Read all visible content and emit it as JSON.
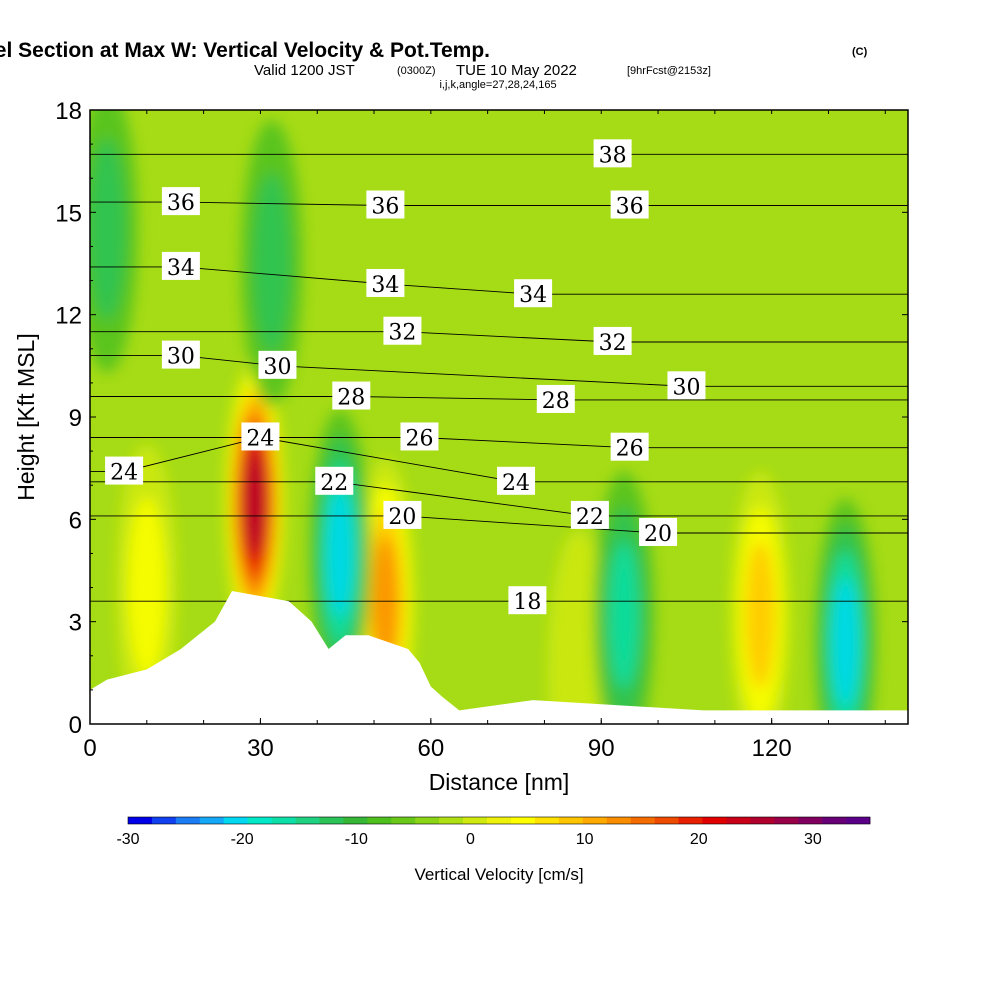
{
  "title": {
    "main": "Wind-Parallel Section at Max W: Vertical Velocity & Pot.Temp.",
    "main_units": "(C)",
    "valid_prefix": "Valid 1200 JST",
    "valid_utc": "(0300Z)",
    "valid_date": "TUE 10 May 2022",
    "forecast": "[9hrFcst@2153z]",
    "indices": "i,j,k,angle=27,28,24,165"
  },
  "chart_data": {
    "type": "heatmap",
    "title": "Wind-Parallel Section at Max W: Vertical Velocity & Pot.Temp. (C)",
    "xlabel": "Distance [nm]",
    "ylabel": "Height [Kft MSL]",
    "xlim": [
      0,
      144
    ],
    "ylim": [
      0,
      18
    ],
    "x_ticks": [
      "0",
      "30",
      "60",
      "90",
      "120"
    ],
    "y_ticks": [
      "0",
      "3",
      "6",
      "9",
      "12",
      "15",
      "18"
    ],
    "fill_field": "Vertical Velocity [cm/s]",
    "colorbar": {
      "label": "Vertical Velocity [cm/s]",
      "ticks": [
        "-30",
        "-20",
        "-10",
        "0",
        "10",
        "20",
        "30"
      ],
      "min": -30,
      "max": 35,
      "step": 2.5,
      "colors": [
        "#0000e8",
        "#1040f0",
        "#1c7cf4",
        "#14a8f6",
        "#00d8f2",
        "#00e8c8",
        "#0ce0a8",
        "#1ed282",
        "#2cc458",
        "#36b836",
        "#4ec01e",
        "#6ac818",
        "#8cd416",
        "#aee014",
        "#d0ea10",
        "#eef20a",
        "#ffff00",
        "#ffe200",
        "#ffc600",
        "#ffaa00",
        "#fa8c00",
        "#f46c00",
        "#ee4a00",
        "#e82000",
        "#e00000",
        "#c80018",
        "#b0002e",
        "#980048",
        "#800060",
        "#680078",
        "#5a0088"
      ]
    },
    "updraft_cores": [
      {
        "x": 29,
        "z": 6.5,
        "w": 35
      },
      {
        "x": 52,
        "z": 3.6,
        "w": 20
      },
      {
        "x": 118,
        "z": 3.2,
        "w": 15
      },
      {
        "x": 10,
        "z": 4.0,
        "w": 10
      },
      {
        "x": 86,
        "z": 1.5,
        "w": 5
      }
    ],
    "downdraft_cores": [
      {
        "x": 44,
        "z": 5.0,
        "w": -20
      },
      {
        "x": 133,
        "z": 2.4,
        "w": -20
      },
      {
        "x": 94,
        "z": 3.2,
        "w": -15
      },
      {
        "x": 3,
        "z": 14.5,
        "w": -10
      },
      {
        "x": 32,
        "z": 13.5,
        "w": -8
      }
    ],
    "terrain_profile": {
      "x": [
        0,
        3,
        10,
        13,
        16,
        19,
        22,
        25,
        35,
        37,
        39,
        42,
        45,
        46,
        49,
        56,
        58,
        60,
        62,
        65,
        78,
        108,
        128,
        144
      ],
      "z": [
        1.0,
        1.3,
        1.6,
        1.9,
        2.2,
        2.6,
        3.0,
        3.9,
        3.6,
        3.3,
        3.0,
        2.2,
        2.6,
        2.6,
        2.6,
        2.2,
        1.8,
        1.1,
        0.8,
        0.4,
        0.7,
        0.4,
        0.4,
        0.4
      ],
      "note": "blank (white) region below terrain"
    },
    "theta_contour_labels": [
      {
        "text": "38",
        "x": 92,
        "z": 16.7
      },
      {
        "text": "36",
        "x": 16,
        "z": 15.3
      },
      {
        "text": "36",
        "x": 52,
        "z": 15.2
      },
      {
        "text": "36",
        "x": 95,
        "z": 15.2
      },
      {
        "text": "34",
        "x": 16,
        "z": 13.4
      },
      {
        "text": "34",
        "x": 52,
        "z": 12.9
      },
      {
        "text": "34",
        "x": 78,
        "z": 12.6
      },
      {
        "text": "32",
        "x": 55,
        "z": 11.5
      },
      {
        "text": "32",
        "x": 92,
        "z": 11.2
      },
      {
        "text": "30",
        "x": 16,
        "z": 10.8
      },
      {
        "text": "30",
        "x": 33,
        "z": 10.5
      },
      {
        "text": "30",
        "x": 105,
        "z": 9.9
      },
      {
        "text": "28",
        "x": 46,
        "z": 9.6
      },
      {
        "text": "28",
        "x": 82,
        "z": 9.5
      },
      {
        "text": "26",
        "x": 58,
        "z": 8.4
      },
      {
        "text": "26",
        "x": 95,
        "z": 8.1
      },
      {
        "text": "24",
        "x": 6,
        "z": 7.4
      },
      {
        "text": "24",
        "x": 30,
        "z": 8.4
      },
      {
        "text": "24",
        "x": 75,
        "z": 7.1
      },
      {
        "text": "22",
        "x": 43,
        "z": 7.1
      },
      {
        "text": "22",
        "x": 88,
        "z": 6.1
      },
      {
        "text": "20",
        "x": 55,
        "z": 6.1
      },
      {
        "text": "20",
        "x": 100,
        "z": 5.6
      },
      {
        "text": "18",
        "x": 77,
        "z": 3.6
      }
    ]
  }
}
